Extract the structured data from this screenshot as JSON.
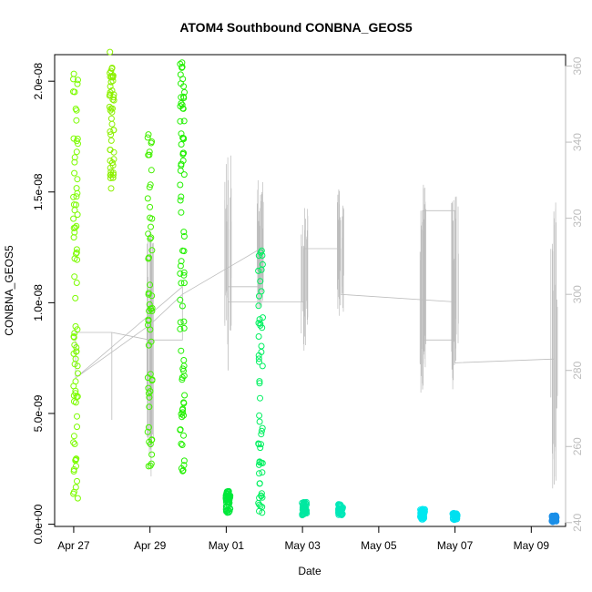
{
  "chart_data": {
    "type": "scatter",
    "title": "ATOM4 Southbound CONBNA_GEOS5",
    "xlabel": "Date",
    "ylabel": "CONBNA_GEOS5",
    "x_ticks": [
      "Apr 27",
      "Apr 29",
      "May 01",
      "May 03",
      "May 05",
      "May 07",
      "May 09"
    ],
    "y_ticks": [
      "0.0e+00",
      "5.0e-09",
      "1.0e-08",
      "1.5e-08",
      "2.0e-08"
    ],
    "y_tick_values": [
      0,
      5e-09,
      1e-08,
      1.5e-08,
      2e-08
    ],
    "y2_ticks": [
      "240",
      "260",
      "280",
      "300",
      "320",
      "340",
      "360"
    ],
    "y2_tick_values": [
      240,
      260,
      280,
      300,
      320,
      340,
      360
    ],
    "x_range_days": [
      -0.5,
      12.9
    ],
    "ylim": [
      -1e-10,
      2.12e-08
    ],
    "y2lim": [
      239,
      363
    ],
    "scatter_clusters": [
      {
        "x": 0.05,
        "ymin": 1.1e-09,
        "ymax": 2.05e-08,
        "color": "#7cfc00",
        "dense": 1
      },
      {
        "x": 1.0,
        "ymin": 1.5e-08,
        "ymax": 2.15e-08,
        "color": "#8cf000",
        "dense": 0.5
      },
      {
        "x": 2.0,
        "ymin": 2.2e-09,
        "ymax": 1.8e-08,
        "color": "#44f000",
        "dense": 0.6
      },
      {
        "x": 2.85,
        "ymin": 2.3e-09,
        "ymax": 2.1e-08,
        "color": "#22f000",
        "dense": 1
      },
      {
        "x": 4.05,
        "ymin": 5e-10,
        "ymax": 1.5e-09,
        "color": "#00e83a",
        "dense": 0.6
      },
      {
        "x": 4.9,
        "ymin": 5e-10,
        "ymax": 1.25e-08,
        "color": "#00f060",
        "dense": 0.6
      },
      {
        "x": 6.05,
        "ymin": 4e-10,
        "ymax": 1e-09,
        "color": "#00e8a0",
        "dense": 0.5
      },
      {
        "x": 7.0,
        "ymin": 4e-10,
        "ymax": 9e-10,
        "color": "#00e8b8",
        "dense": 0.5
      },
      {
        "x": 9.15,
        "ymin": 2e-10,
        "ymax": 7e-10,
        "color": "#00e8f0",
        "dense": 0.5
      },
      {
        "x": 10.0,
        "ymin": 2e-10,
        "ymax": 5e-10,
        "color": "#00e0f0",
        "dense": 0.4
      },
      {
        "x": 12.6,
        "ymin": 1e-10,
        "ymax": 4e-10,
        "color": "#1a8fe8",
        "dense": 0.5
      }
    ],
    "line_segments": [
      [
        0.05,
        278
      ],
      [
        0.05,
        290
      ],
      [
        1.0,
        290
      ],
      [
        1.0,
        267
      ],
      [
        1.0,
        290
      ],
      [
        2.0,
        288
      ],
      [
        2.85,
        288
      ],
      [
        2.85,
        302
      ],
      [
        0.05,
        278
      ],
      [
        2.0,
        292
      ],
      [
        2.85,
        300
      ],
      [
        4.9,
        312
      ],
      [
        4.9,
        302
      ],
      [
        4.05,
        302
      ],
      [
        4.05,
        330
      ],
      [
        4.05,
        280
      ],
      [
        4.05,
        298
      ],
      [
        5.9,
        298
      ],
      [
        6.05,
        298
      ],
      [
        6.05,
        312
      ],
      [
        6.9,
        312
      ],
      [
        7.0,
        312
      ],
      [
        7.0,
        300
      ],
      [
        10.0,
        298
      ],
      [
        10.0,
        288
      ],
      [
        9.15,
        288
      ],
      [
        9.15,
        275
      ],
      [
        9.15,
        322
      ],
      [
        10.0,
        322
      ],
      [
        10.0,
        282
      ],
      [
        12.6,
        283
      ],
      [
        12.6,
        250
      ],
      [
        12.6,
        320
      ]
    ],
    "grid": false,
    "series_colors": {
      "right_axis_line": "#bdbdbd"
    }
  }
}
